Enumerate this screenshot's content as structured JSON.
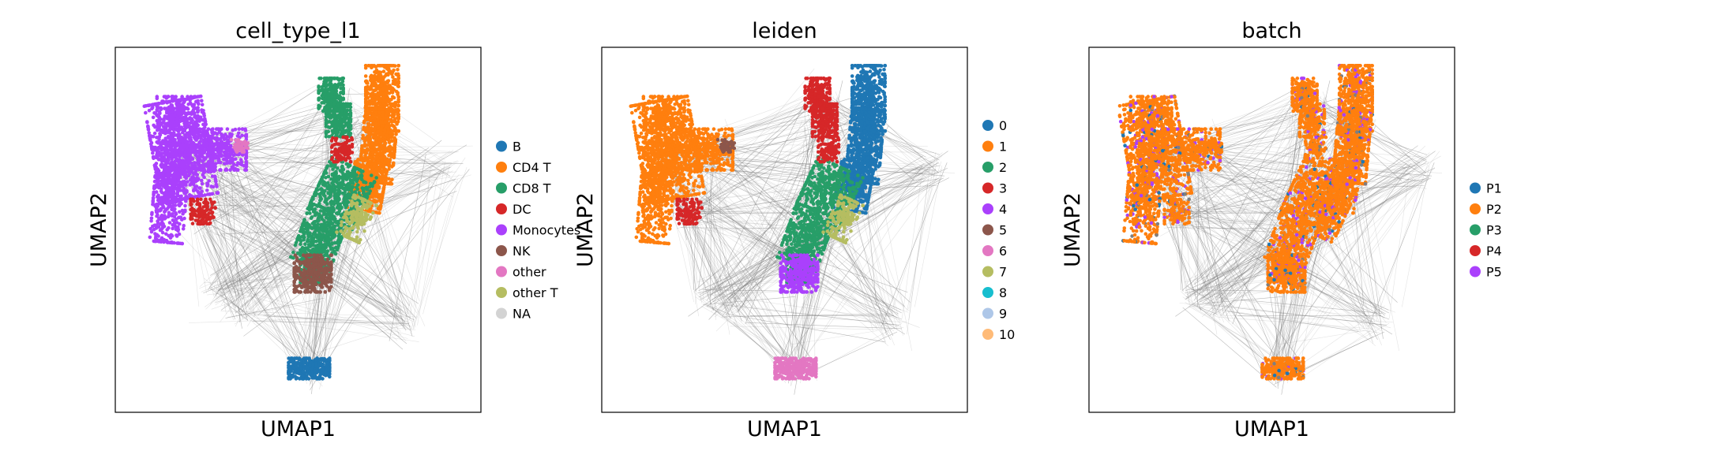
{
  "chart_data": [
    {
      "type": "scatter",
      "title": "cell_type_l1",
      "xlabel": "UMAP1",
      "ylabel": "UMAP2",
      "grid": false,
      "legend": "right",
      "legend_entries": [
        {
          "label": "B",
          "color": "#1f77b4"
        },
        {
          "label": "CD4 T",
          "color": "#ff7f0e"
        },
        {
          "label": "CD8 T",
          "color": "#279e68"
        },
        {
          "label": "DC",
          "color": "#d62728"
        },
        {
          "label": "Monocytes",
          "color": "#aa40fc"
        },
        {
          "label": "NK",
          "color": "#8c564b"
        },
        {
          "label": "other",
          "color": "#e377c2"
        },
        {
          "label": "other T",
          "color": "#b5bd61"
        },
        {
          "label": "NA",
          "color": "#d3d3d3"
        }
      ]
    },
    {
      "type": "scatter",
      "title": "leiden",
      "xlabel": "UMAP1",
      "ylabel": "UMAP2",
      "grid": false,
      "legend": "right",
      "legend_entries": [
        {
          "label": "0",
          "color": "#1f77b4"
        },
        {
          "label": "1",
          "color": "#ff7f0e"
        },
        {
          "label": "2",
          "color": "#279e68"
        },
        {
          "label": "3",
          "color": "#d62728"
        },
        {
          "label": "4",
          "color": "#aa40fc"
        },
        {
          "label": "5",
          "color": "#8c564b"
        },
        {
          "label": "6",
          "color": "#e377c2"
        },
        {
          "label": "7",
          "color": "#b5bd61"
        },
        {
          "label": "8",
          "color": "#17becf"
        },
        {
          "label": "9",
          "color": "#aec7e8"
        },
        {
          "label": "10",
          "color": "#ffbb78"
        }
      ]
    },
    {
      "type": "scatter",
      "title": "batch",
      "xlabel": "UMAP1",
      "ylabel": "UMAP2",
      "grid": false,
      "legend": "right",
      "legend_entries": [
        {
          "label": "P1",
          "color": "#1f77b4"
        },
        {
          "label": "P2",
          "color": "#ff7f0e"
        },
        {
          "label": "P3",
          "color": "#279e68"
        },
        {
          "label": "P4",
          "color": "#d62728"
        },
        {
          "label": "P5",
          "color": "#aa40fc"
        }
      ]
    }
  ]
}
